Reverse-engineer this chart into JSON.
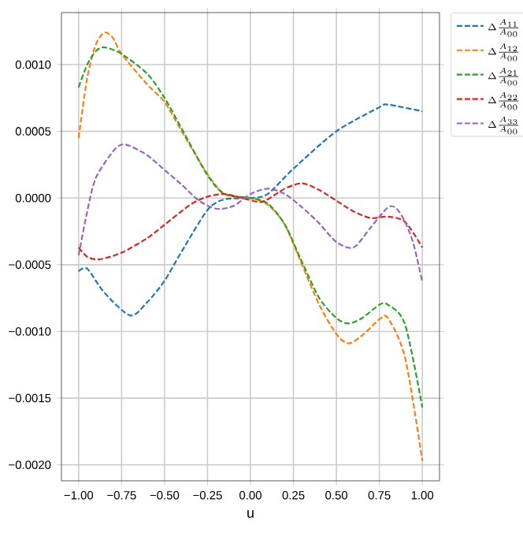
{
  "chart_data": {
    "type": "line",
    "xlabel": "u",
    "xlim": [
      -1.1,
      1.1
    ],
    "ylim": [
      -0.00212,
      0.00139
    ],
    "grid": true,
    "legend": "top right outside",
    "line_style": "dashed",
    "marker": "none",
    "xticks": [
      {
        "value": -1,
        "label": "−1.00"
      },
      {
        "value": -0.75,
        "label": "−0.75"
      },
      {
        "value": -0.5,
        "label": "−0.50"
      },
      {
        "value": -0.25,
        "label": "−0.25"
      },
      {
        "value": 0,
        "label": "0.00"
      },
      {
        "value": 0.25,
        "label": "0.25"
      },
      {
        "value": 0.5,
        "label": "0.50"
      },
      {
        "value": 0.75,
        "label": "0.75"
      },
      {
        "value": 1,
        "label": "1.00"
      }
    ],
    "yticks": [
      {
        "value": -0.002,
        "label": "−0.0020"
      },
      {
        "value": -0.0015,
        "label": "−0.0015"
      },
      {
        "value": -0.001,
        "label": "−0.0010"
      },
      {
        "value": -0.0005,
        "label": "−0.0005"
      },
      {
        "value": 0,
        "label": "0.0000"
      },
      {
        "value": 0.0005,
        "label": "0.0005"
      },
      {
        "value": 0.001,
        "label": "0.0010"
      }
    ],
    "series": [
      {
        "name": "\\Delta\\frac{A_{11}}{A_{00}}",
        "color": "#1f77b4",
        "x": [
          -1,
          -0.95,
          -0.85,
          -0.7,
          -0.6,
          -0.5,
          -0.4,
          -0.25,
          -0.15,
          0,
          0.1,
          0.25,
          0.5,
          0.75,
          0.8,
          1.0
        ],
        "values": [
          -0.00055,
          -0.00053,
          -0.00071,
          -0.00088,
          -0.00078,
          -0.00062,
          -0.0004,
          -9e-05,
          -1e-05,
          0.0,
          3e-05,
          0.00022,
          0.0005,
          0.00068,
          0.0007,
          0.00065
        ]
      },
      {
        "name": "\\Delta\\frac{A_{12}}{A_{00}}",
        "color": "#ff7f0e",
        "x": [
          -1,
          -0.95,
          -0.9,
          -0.85,
          -0.8,
          -0.75,
          -0.6,
          -0.5,
          -0.4,
          -0.25,
          -0.15,
          0,
          0.1,
          0.2,
          0.3,
          0.4,
          0.5,
          0.57,
          0.65,
          0.75,
          0.8,
          0.9,
          1.0
        ],
        "values": [
          0.00045,
          0.0009,
          0.00115,
          0.00124,
          0.0012,
          0.00108,
          0.00085,
          0.00072,
          0.0005,
          0.00018,
          3e-05,
          0.0,
          -5e-05,
          -0.0002,
          -0.0005,
          -0.0008,
          -0.00102,
          -0.00109,
          -0.00103,
          -0.00091,
          -0.0009,
          -0.0012,
          -0.00197
        ]
      },
      {
        "name": "\\Delta\\frac{A_{21}}{A_{00}}",
        "color": "#2ca02c",
        "x": [
          -1,
          -0.95,
          -0.9,
          -0.85,
          -0.75,
          -0.6,
          -0.5,
          -0.4,
          -0.25,
          -0.15,
          0,
          0.1,
          0.2,
          0.3,
          0.4,
          0.5,
          0.57,
          0.65,
          0.75,
          0.8,
          0.9,
          1.0
        ],
        "values": [
          0.00083,
          0.001,
          0.0011,
          0.00113,
          0.00108,
          0.00093,
          0.00075,
          0.00052,
          0.00017,
          3e-05,
          0.0,
          -4e-05,
          -0.0002,
          -0.00048,
          -0.00075,
          -0.0009,
          -0.00094,
          -0.0009,
          -0.0008,
          -0.0008,
          -0.00095,
          -0.00157
        ]
      },
      {
        "name": "\\Delta\\frac{A_{22}}{A_{00}}",
        "color": "#d62728",
        "x": [
          -1,
          -0.95,
          -0.88,
          -0.75,
          -0.6,
          -0.5,
          -0.35,
          -0.25,
          -0.15,
          -0.05,
          0.05,
          0.1,
          0.2,
          0.3,
          0.4,
          0.5,
          0.6,
          0.7,
          0.8,
          0.9,
          1.0
        ],
        "values": [
          -0.00037,
          -0.00044,
          -0.00046,
          -0.00041,
          -0.0003,
          -0.0002,
          -5e-05,
          1e-05,
          3e-05,
          0.0,
          -3e-05,
          -1e-05,
          7e-05,
          0.00011,
          6e-05,
          -2e-05,
          -0.0001,
          -0.00015,
          -0.00014,
          -0.00018,
          -0.00037
        ]
      },
      {
        "name": "\\Delta\\frac{A_{33}}{A_{00}}",
        "color": "#9467bd",
        "x": [
          -1,
          -0.95,
          -0.9,
          -0.8,
          -0.75,
          -0.7,
          -0.6,
          -0.5,
          -0.4,
          -0.3,
          -0.2,
          -0.1,
          0,
          0.1,
          0.2,
          0.3,
          0.4,
          0.5,
          0.6,
          0.7,
          0.8,
          0.85,
          0.9,
          0.95,
          1.0
        ],
        "values": [
          -0.00043,
          -0.0001,
          0.00015,
          0.00035,
          0.0004,
          0.00039,
          0.00032,
          0.00021,
          0.0001,
          -2e-05,
          -8e-05,
          -6e-05,
          3e-05,
          7e-05,
          3e-05,
          -7e-05,
          -0.00019,
          -0.00033,
          -0.00037,
          -0.00022,
          -7e-05,
          -8e-05,
          -0.00018,
          -0.00035,
          -0.00063
        ]
      }
    ]
  }
}
